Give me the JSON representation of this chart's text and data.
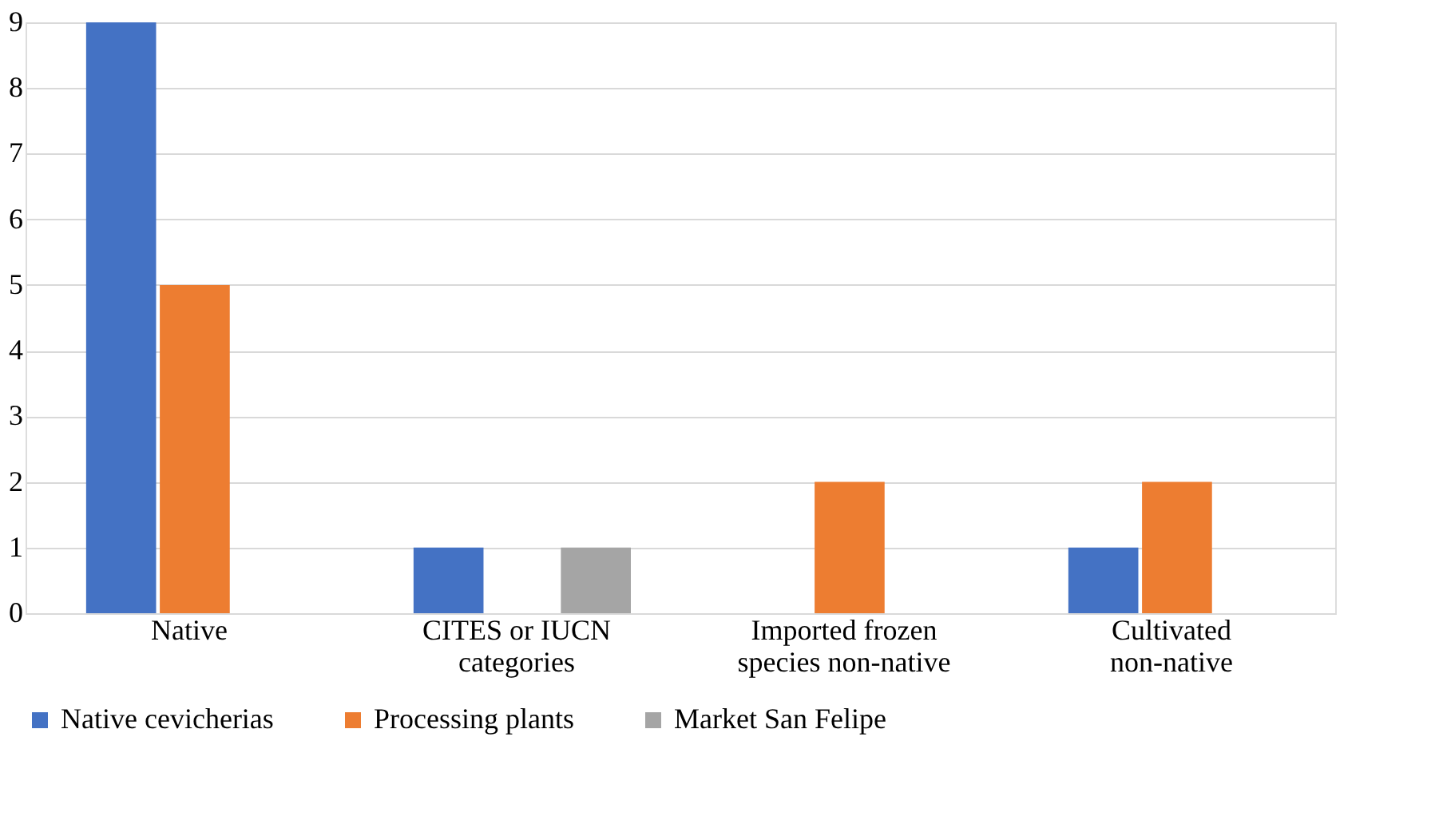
{
  "chart_data": {
    "type": "bar",
    "categories": [
      "Native",
      "CITES or IUCN categories",
      "Imported frozen species non-native",
      "Cultivated non-native"
    ],
    "series": [
      {
        "name": "Native cevicherias",
        "color": "#4472c4",
        "values": [
          9,
          1,
          0,
          1
        ]
      },
      {
        "name": "Processing plants",
        "color": "#ed7d31",
        "values": [
          5,
          0,
          2,
          2
        ]
      },
      {
        "name": "Market San Felipe",
        "color": "#a5a5a5",
        "values": [
          0,
          1,
          0,
          0
        ]
      }
    ],
    "ylim": [
      0,
      9
    ],
    "yticks": [
      0,
      1,
      2,
      3,
      4,
      5,
      6,
      7,
      8,
      9
    ],
    "grid": "y",
    "legend": "bottom"
  }
}
